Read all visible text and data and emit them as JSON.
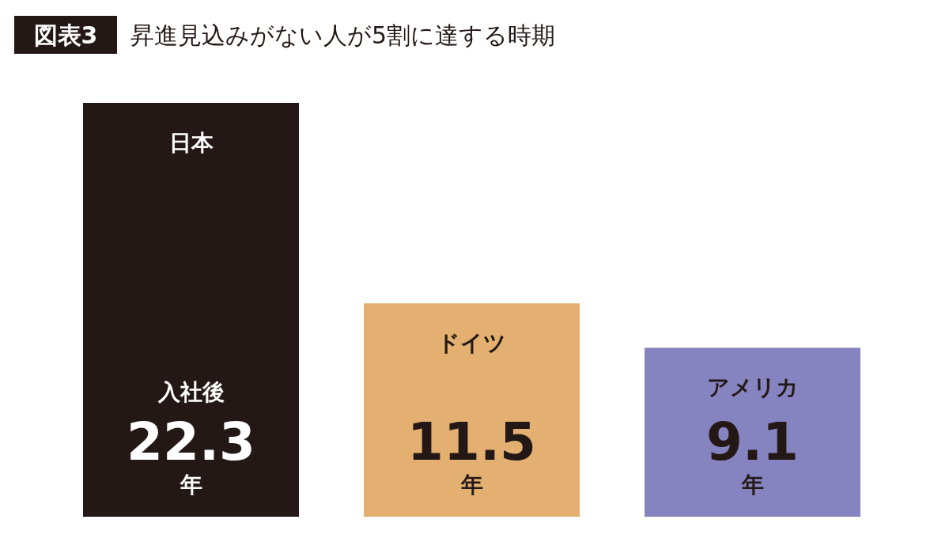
{
  "chart_data": {
    "type": "bar",
    "title": "昇進見込みがない人が5割に達する時期",
    "categories": [
      "日本",
      "ドイツ",
      "アメリカ"
    ],
    "values": [
      22.3,
      11.5,
      9.1
    ],
    "colors": [
      "#231815",
      "#e3b071",
      "#8584c0"
    ],
    "data_labels": true,
    "annotations": [
      "図表3",
      "入社後",
      "年",
      "年",
      "年"
    ]
  }
}
